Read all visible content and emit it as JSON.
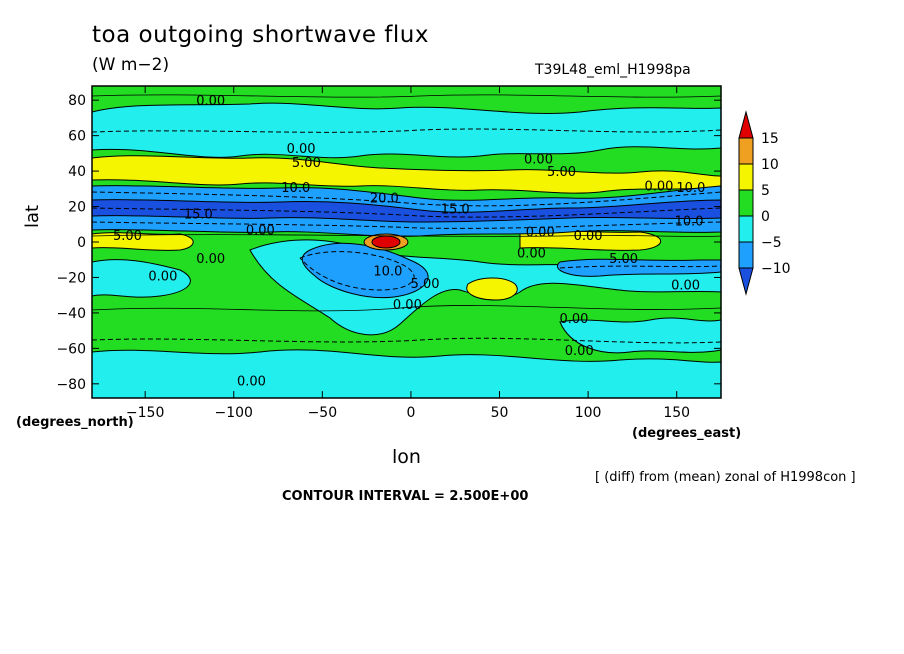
{
  "chart_data": {
    "type": "heatmap",
    "title": "toa outgoing shortwave flux",
    "units": "(W m−2)",
    "run_label": "T39L48_eml_H1998pa",
    "xlabel": "lon",
    "ylabel": "lat",
    "x_units": "(degrees_east)",
    "y_units": "(degrees_north)",
    "x_ticks": [
      -150,
      -100,
      -50,
      0,
      50,
      100,
      150
    ],
    "x_tick_labels": [
      "−150",
      "−100",
      "−50",
      "0",
      "50",
      "100",
      "150"
    ],
    "y_ticks": [
      -80,
      -60,
      -40,
      -20,
      0,
      20,
      40,
      60,
      80
    ],
    "y_tick_labels": [
      "−80",
      "−60",
      "−40",
      "−20",
      "0",
      "20",
      "40",
      "60",
      "80"
    ],
    "xlim": [
      -180,
      175
    ],
    "ylim": [
      -88,
      88
    ],
    "colorbar": {
      "levels": [
        "15",
        "10",
        "5",
        "0",
        "−5",
        "−10"
      ],
      "colors": [
        "#e00000",
        "#f0a020",
        "#f5f500",
        "#22dd22",
        "#22eeee",
        "#1ea0ff",
        "#1a50e0"
      ]
    },
    "note": "[ (diff) from (mean) zonal of H1998con ]",
    "contour_interval": "CONTOUR INTERVAL = 2.500E+00",
    "contour_labels": [
      {
        "text": "0.00",
        "lon": -113,
        "lat": 80
      },
      {
        "text": "0.00",
        "lon": -62,
        "lat": 53
      },
      {
        "text": "5.00",
        "lon": -59,
        "lat": 45
      },
      {
        "text": "10.0",
        "lon": -65,
        "lat": 31
      },
      {
        "text": "0.00",
        "lon": 72,
        "lat": 47
      },
      {
        "text": "5.00",
        "lon": 85,
        "lat": 40
      },
      {
        "text": "0.00",
        "lon": 140,
        "lat": 32
      },
      {
        "text": "10.0",
        "lon": 158,
        "lat": 31
      },
      {
        "text": "20.0",
        "lon": -15,
        "lat": 25
      },
      {
        "text": "15.0",
        "lon": 25,
        "lat": 19
      },
      {
        "text": "15.0",
        "lon": -120,
        "lat": 16
      },
      {
        "text": "0.00",
        "lon": -85,
        "lat": 7
      },
      {
        "text": "10.0",
        "lon": 157,
        "lat": 12
      },
      {
        "text": "0.00",
        "lon": 73,
        "lat": 6
      },
      {
        "text": "0.00",
        "lon": 100,
        "lat": 4
      },
      {
        "text": "5.00",
        "lon": -160,
        "lat": 4
      },
      {
        "text": "0.00",
        "lon": -113,
        "lat": -9
      },
      {
        "text": "0.00",
        "lon": 68,
        "lat": -6
      },
      {
        "text": "5.00",
        "lon": 120,
        "lat": -9
      },
      {
        "text": "10.0",
        "lon": -13,
        "lat": -16
      },
      {
        "text": "0.00",
        "lon": -140,
        "lat": -19
      },
      {
        "text": "5.00",
        "lon": 8,
        "lat": -23
      },
      {
        "text": "0.00",
        "lon": 155,
        "lat": -24
      },
      {
        "text": "0.00",
        "lon": -2,
        "lat": -35
      },
      {
        "text": "0.00",
        "lon": 92,
        "lat": -43
      },
      {
        "text": "0.00",
        "lon": 95,
        "lat": -61
      },
      {
        "text": "0.00",
        "lon": -90,
        "lat": -78
      }
    ]
  }
}
